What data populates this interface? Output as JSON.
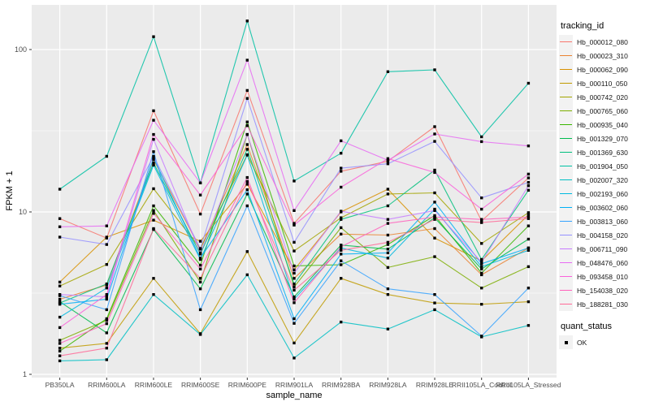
{
  "chart_data": {
    "type": "line",
    "title": "",
    "xlabel": "sample_name",
    "ylabel": "FPKM + 1",
    "y_scale": "log10",
    "y_ticks": [
      1,
      10,
      100
    ],
    "y_minor_ticks": [
      3.162,
      31.62
    ],
    "ylim_log10": [
      -0.02,
      2.275
    ],
    "grid": "on",
    "legend_position": "right",
    "panel_bg": "#EBEBEB",
    "grid_color": "#FFFFFF",
    "tick_color": "#333333",
    "tick_label_color": "#4D4D4D",
    "axis_title_color": "#000000",
    "point_color": "#000000",
    "categories": [
      "PB350LA",
      "RRIM600LA",
      "RRIM600LE",
      "RRIM600SE",
      "RRIM600PE",
      "RRIM901LA",
      "RRIM928BA",
      "RRIM928LA",
      "RRIM928LE",
      "RRII105LA_Control",
      "RRII105LA_Stressed"
    ],
    "series": [
      {
        "name": "Hb_000012_080",
        "color": "#F8766D",
        "values": [
          9.1,
          6.9,
          42,
          9.7,
          56,
          8.5,
          17.8,
          20.5,
          33.5,
          8.8,
          16.2
        ]
      },
      {
        "name": "Hb_000023_310",
        "color": "#EA8331",
        "values": [
          2.9,
          3.55,
          21,
          5.9,
          26,
          3.9,
          7.3,
          7.2,
          7.9,
          4.1,
          6.0
        ]
      },
      {
        "name": "Hb_000062_090",
        "color": "#D89000",
        "values": [
          3.7,
          7.0,
          8.9,
          6.6,
          14.8,
          4.4,
          10.0,
          13.8,
          6.9,
          5.0,
          9.6
        ]
      },
      {
        "name": "Hb_000110_050",
        "color": "#C09B00",
        "values": [
          1.45,
          1.55,
          3.9,
          1.78,
          5.7,
          1.56,
          3.9,
          3.1,
          2.75,
          2.7,
          2.8
        ]
      },
      {
        "name": "Hb_000742_020",
        "color": "#A3A500",
        "values": [
          3.5,
          4.75,
          13.9,
          5.95,
          22.5,
          5.75,
          9.2,
          12.9,
          13.1,
          6.4,
          9.9
        ]
      },
      {
        "name": "Hb_000765_060",
        "color": "#7CAE00",
        "values": [
          1.62,
          2.15,
          10.2,
          3.7,
          30,
          3.45,
          8.0,
          4.55,
          5.3,
          3.4,
          4.6
        ]
      },
      {
        "name": "Hb_000935_040",
        "color": "#39B600",
        "values": [
          1.39,
          2.2,
          10.9,
          4.7,
          35.8,
          4.65,
          4.73,
          6.3,
          9.5,
          4.2,
          8.2
        ]
      },
      {
        "name": "Hb_001329_070",
        "color": "#00BB4E",
        "values": [
          2.8,
          1.8,
          7.8,
          3.36,
          12.9,
          3.0,
          6.25,
          5.9,
          9.2,
          4.45,
          6.8
        ]
      },
      {
        "name": "Hb_001369_630",
        "color": "#00BF7D",
        "values": [
          2.75,
          3.6,
          20,
          5.5,
          24.3,
          3.6,
          9.0,
          10.9,
          18.1,
          5.1,
          13.6
        ]
      },
      {
        "name": "Hb_001904_050",
        "color": "#00C1A3",
        "values": [
          13.8,
          22,
          120,
          15.1,
          150,
          15.5,
          23,
          73,
          75,
          29,
          62
        ]
      },
      {
        "name": "Hb_002007_320",
        "color": "#00BFC4",
        "values": [
          1.21,
          1.23,
          3.1,
          1.76,
          4.1,
          1.26,
          2.1,
          1.9,
          2.5,
          1.7,
          2.0
        ]
      },
      {
        "name": "Hb_002193_060",
        "color": "#00BAE0",
        "values": [
          2.25,
          3.4,
          19.4,
          5.1,
          22.4,
          2.9,
          6.0,
          5.2,
          10.4,
          4.6,
          5.8
        ]
      },
      {
        "name": "Hb_003602_060",
        "color": "#00B0F6",
        "values": [
          2.7,
          2.9,
          21.5,
          5.2,
          13.7,
          2.2,
          5.5,
          5.6,
          11.5,
          4.8,
          6.0
        ]
      },
      {
        "name": "Hb_003813_060",
        "color": "#35A2FF",
        "values": [
          3.05,
          2.5,
          23.5,
          2.5,
          10.9,
          2.06,
          5.0,
          3.36,
          3.1,
          1.72,
          3.4
        ]
      },
      {
        "name": "Hb_004158_020",
        "color": "#9590FF",
        "values": [
          7.0,
          6.3,
          22,
          5.95,
          50,
          6.5,
          18.6,
          19.8,
          27.2,
          12.2,
          15.2
        ]
      },
      {
        "name": "Hb_006711_090",
        "color": "#C77CFF",
        "values": [
          3.1,
          3.0,
          28,
          5.6,
          30,
          4.2,
          10.1,
          9.0,
          10.2,
          4.9,
          14.5
        ]
      },
      {
        "name": "Hb_048476_060",
        "color": "#E76BF3",
        "values": [
          8.1,
          8.2,
          36.7,
          15.1,
          86,
          10.2,
          27.4,
          20.8,
          30.2,
          27.1,
          25.5
        ]
      },
      {
        "name": "Hb_093458_010",
        "color": "#FA62DB",
        "values": [
          1.94,
          3.1,
          30,
          12.7,
          34,
          8.3,
          14.2,
          21.3,
          17.5,
          10.4,
          17.1
        ]
      },
      {
        "name": "Hb_154038_020",
        "color": "#FF62BC",
        "values": [
          1.55,
          2.05,
          9.8,
          4.45,
          16.3,
          2.76,
          6.1,
          8.5,
          9.3,
          9.0,
          9.3
        ]
      },
      {
        "name": "Hb_188281_030",
        "color": "#FF6A98",
        "values": [
          1.3,
          1.45,
          7.9,
          3.9,
          15.4,
          3.3,
          5.8,
          6.5,
          9.0,
          8.6,
          9.1
        ]
      }
    ]
  },
  "legend_tracking": {
    "title": "tracking_id"
  },
  "legend_quant": {
    "title": "quant_status",
    "entries": [
      {
        "label": "OK"
      }
    ]
  }
}
